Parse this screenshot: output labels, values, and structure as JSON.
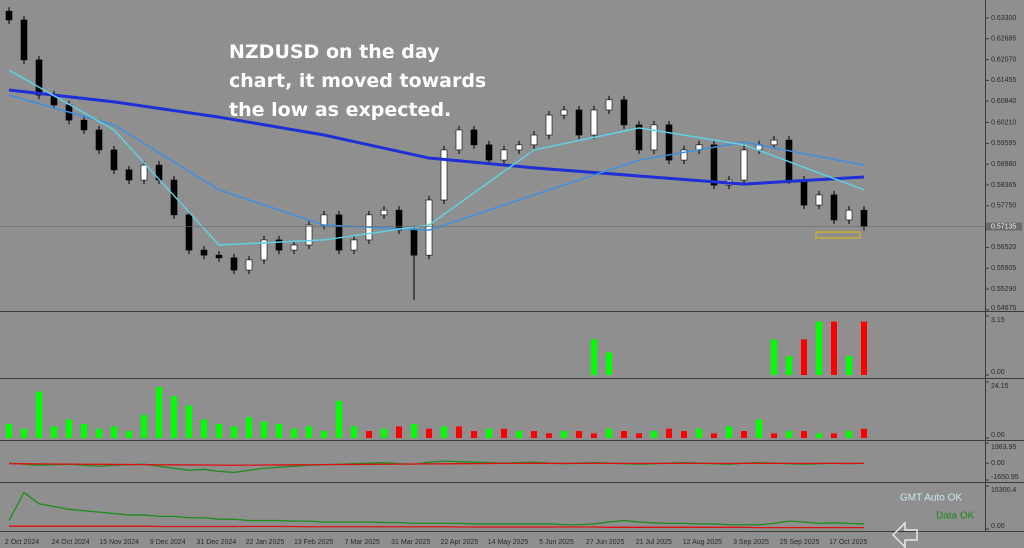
{
  "chart_data": [
    {
      "type": "candlestick",
      "annotation": [
        "NZDUSD on the day",
        "chart, it moved towards",
        "the low as expected."
      ],
      "up_color": "#ffffff",
      "down_color": "#000000",
      "open": [
        0.635,
        0.6324,
        0.6206,
        0.6102,
        0.6073,
        0.6028,
        0.5999,
        0.594,
        0.5881,
        0.5851,
        0.5895,
        0.5851,
        0.5748,
        0.5644,
        0.5629,
        0.5621,
        0.5585,
        0.5615,
        0.5674,
        0.5644,
        0.5659,
        0.5718,
        0.5748,
        0.5644,
        0.5674,
        0.5748,
        0.5762,
        0.5703,
        0.5629,
        0.5792,
        0.594,
        0.5999,
        0.5955,
        0.591,
        0.594,
        0.5955,
        0.5984,
        0.6043,
        0.6058,
        0.5984,
        0.6058,
        0.6088,
        0.6014,
        0.594,
        0.6014,
        0.591,
        0.594,
        0.5955,
        0.5836,
        0.5851,
        0.594,
        0.5955,
        0.5969,
        0.5851,
        0.5777,
        0.5807,
        0.5733,
        0.5762
      ],
      "high": [
        0.6362,
        0.6336,
        0.6218,
        0.6114,
        0.6085,
        0.604,
        0.6011,
        0.5952,
        0.5893,
        0.5907,
        0.5907,
        0.5863,
        0.576,
        0.5656,
        0.5641,
        0.5633,
        0.5627,
        0.5686,
        0.5686,
        0.5671,
        0.573,
        0.576,
        0.576,
        0.5686,
        0.576,
        0.5774,
        0.5774,
        0.5715,
        0.5804,
        0.5952,
        0.6011,
        0.6011,
        0.5967,
        0.5952,
        0.5967,
        0.5996,
        0.6055,
        0.607,
        0.607,
        0.607,
        0.61,
        0.61,
        0.6026,
        0.6026,
        0.6026,
        0.5952,
        0.5967,
        0.5967,
        0.5863,
        0.5952,
        0.5967,
        0.5981,
        0.5981,
        0.5863,
        0.5819,
        0.5819,
        0.5774,
        0.5774
      ],
      "low": [
        0.6312,
        0.6194,
        0.609,
        0.6061,
        0.6016,
        0.5987,
        0.5928,
        0.5869,
        0.5839,
        0.5839,
        0.5839,
        0.5736,
        0.5632,
        0.5617,
        0.5609,
        0.5573,
        0.5573,
        0.5603,
        0.5632,
        0.5632,
        0.5647,
        0.5706,
        0.5632,
        0.5632,
        0.5662,
        0.5736,
        0.5691,
        0.5497,
        0.5617,
        0.578,
        0.5928,
        0.5943,
        0.5898,
        0.5898,
        0.5928,
        0.5943,
        0.5972,
        0.6031,
        0.5972,
        0.5972,
        0.6046,
        0.6002,
        0.5928,
        0.5928,
        0.5898,
        0.5898,
        0.5928,
        0.5824,
        0.5824,
        0.5839,
        0.5928,
        0.5943,
        0.5839,
        0.5765,
        0.5765,
        0.5721,
        0.5721,
        0.5702
      ],
      "close": [
        0.6324,
        0.6206,
        0.6102,
        0.6073,
        0.6028,
        0.5999,
        0.594,
        0.5881,
        0.5851,
        0.5895,
        0.5851,
        0.5748,
        0.5644,
        0.5629,
        0.5621,
        0.5585,
        0.5615,
        0.5674,
        0.5644,
        0.5659,
        0.5718,
        0.5748,
        0.5644,
        0.5674,
        0.5748,
        0.5762,
        0.5703,
        0.5629,
        0.5792,
        0.594,
        0.5999,
        0.5955,
        0.591,
        0.594,
        0.5955,
        0.5984,
        0.6043,
        0.6058,
        0.5984,
        0.6058,
        0.6088,
        0.6014,
        0.594,
        0.6014,
        0.591,
        0.594,
        0.5955,
        0.5836,
        0.5851,
        0.594,
        0.5955,
        0.5969,
        0.5851,
        0.5777,
        0.5807,
        0.5733,
        0.5762,
        0.57135
      ],
      "overlays": [
        {
          "color": "#1f2fd6",
          "x": [
            0,
            7,
            14,
            21,
            28,
            35,
            42,
            49,
            57
          ],
          "values": [
            0.6117,
            0.6082,
            0.6037,
            0.5984,
            0.5916,
            0.5887,
            0.5863,
            0.5839,
            0.586
          ]
        },
        {
          "color": "#3d8fe0",
          "x": [
            0,
            7,
            14,
            21,
            28,
            35,
            42,
            49,
            57
          ],
          "values": [
            0.6102,
            0.6014,
            0.5822,
            0.5718,
            0.5703,
            0.5807,
            0.591,
            0.5963,
            0.5895
          ]
        },
        {
          "color": "#5fd0e6",
          "x": [
            0,
            7,
            14,
            21,
            28,
            35,
            42,
            49,
            57
          ],
          "values": [
            0.6176,
            0.5999,
            0.5659,
            0.5674,
            0.5718,
            0.594,
            0.6005,
            0.5955,
            0.5822
          ]
        }
      ],
      "last_price": 0.57135,
      "ylim": [
        0.5464,
        0.6383
      ],
      "yticks": [
        {
          "value": 0.633,
          "label": "0.63300"
        },
        {
          "value": 0.62685,
          "label": "0.62685"
        },
        {
          "value": 0.6207,
          "label": "0.62070"
        },
        {
          "value": 0.61455,
          "label": "0.61455"
        },
        {
          "value": 0.6084,
          "label": "0.60840"
        },
        {
          "value": 0.6021,
          "label": "0.60210"
        },
        {
          "value": 0.59595,
          "label": "0.59595"
        },
        {
          "value": 0.5898,
          "label": "0.58980"
        },
        {
          "value": 0.58365,
          "label": "0.58365"
        },
        {
          "value": 0.5775,
          "label": "0.57750"
        },
        {
          "value": 0.5652,
          "label": "0.56520"
        },
        {
          "value": 0.55905,
          "label": "0.55905"
        },
        {
          "value": 0.5529,
          "label": "0.55290"
        },
        {
          "value": 0.54675,
          "label": "0.54675"
        }
      ],
      "x_labels": [
        "2 Oct 2024",
        "24 Oct 2024",
        "15 Nov 2024",
        "9 Dec 2024",
        "31 Dec 2024",
        "22 Jan 2025",
        "13 Feb 2025",
        "7 Mar 2025",
        "31 Mar 2025",
        "22 Apr 2025",
        "14 May 2025",
        "5 Jun 2025",
        "27 Jun 2025",
        "21 Jul 2025",
        "12 Aug 2025",
        "3 Sep 2025",
        "25 Sep 2025",
        "17 Oct 2025"
      ]
    },
    {
      "type": "bar",
      "ylim": [
        0,
        3.15
      ],
      "yticks": [
        3.15,
        {
          "value": 0,
          "label": "0.00"
        }
      ],
      "series": [
        {
          "color": "#00ff00",
          "values": [
            null,
            null,
            null,
            null,
            null,
            null,
            null,
            null,
            null,
            null,
            null,
            null,
            null,
            null,
            null,
            null,
            null,
            null,
            null,
            null,
            null,
            null,
            null,
            null,
            null,
            null,
            null,
            null,
            null,
            null,
            null,
            null,
            null,
            null,
            null,
            null,
            null,
            null,
            null,
            1.9,
            1.2,
            null,
            null,
            null,
            null,
            null,
            null,
            null,
            null,
            null,
            null,
            1.9,
            1.0,
            null,
            2.85,
            null,
            1.0,
            null
          ]
        },
        {
          "color": "#ff0000",
          "values": [
            null,
            null,
            null,
            null,
            null,
            null,
            null,
            null,
            null,
            null,
            null,
            null,
            null,
            null,
            null,
            null,
            null,
            null,
            null,
            null,
            null,
            null,
            null,
            null,
            null,
            null,
            null,
            null,
            null,
            null,
            null,
            null,
            null,
            null,
            null,
            null,
            null,
            null,
            null,
            null,
            null,
            null,
            null,
            null,
            null,
            null,
            null,
            null,
            null,
            null,
            null,
            null,
            null,
            1.9,
            null,
            2.85,
            null,
            2.85
          ]
        }
      ]
    },
    {
      "type": "bar",
      "ylim": [
        0,
        24.15
      ],
      "yticks": [
        24.15,
        {
          "value": 0,
          "label": "0.00"
        }
      ],
      "series": [
        {
          "color": "#00ff00",
          "values": [
            6,
            4,
            20,
            5,
            8,
            6,
            4,
            5,
            3,
            10,
            22,
            18,
            14,
            8,
            6,
            5,
            9,
            7,
            6,
            4,
            5,
            3,
            16,
            5,
            null,
            4,
            null,
            6,
            null,
            5,
            null,
            null,
            4,
            null,
            3,
            null,
            null,
            3,
            null,
            null,
            4,
            null,
            null,
            3,
            null,
            null,
            4,
            null,
            5,
            null,
            8,
            null,
            3,
            null,
            2,
            null,
            3,
            null
          ]
        },
        {
          "color": "#ff0000",
          "values": [
            null,
            null,
            null,
            null,
            null,
            null,
            null,
            null,
            null,
            null,
            null,
            null,
            null,
            null,
            null,
            null,
            null,
            null,
            null,
            null,
            null,
            null,
            null,
            null,
            3,
            null,
            5,
            null,
            4,
            null,
            5,
            3,
            null,
            4,
            null,
            3,
            2,
            null,
            3,
            2,
            null,
            3,
            2,
            null,
            4,
            3,
            null,
            2,
            null,
            3,
            null,
            2,
            null,
            3,
            null,
            2,
            null,
            4
          ]
        }
      ]
    },
    {
      "type": "line",
      "ylim": [
        -1650.95,
        1983.95
      ],
      "yticks": [
        1983.95,
        {
          "value": 0,
          "label": "0.00"
        },
        -1650.95
      ],
      "series": [
        {
          "color": "#1e8c1e",
          "values": [
            0,
            -100,
            -200,
            -150,
            -100,
            -200,
            -300,
            -200,
            -150,
            -100,
            -300,
            -500,
            -700,
            -600,
            -800,
            -900,
            -700,
            -500,
            -400,
            -300,
            -200,
            -150,
            -100,
            -50,
            0,
            50,
            -50,
            -100,
            100,
            200,
            150,
            100,
            50,
            0,
            50,
            100,
            0,
            -50,
            0,
            50,
            0,
            -50,
            -100,
            -50,
            0,
            50,
            0,
            -50,
            -100,
            0,
            50,
            0,
            -50,
            -100,
            -50,
            0,
            -50,
            0
          ]
        },
        {
          "color": "#e01010",
          "values": [
            -50,
            -60,
            -70,
            -80,
            -90,
            -100,
            -110,
            -120,
            -130,
            -140,
            -150,
            -160,
            -170,
            -180,
            -190,
            -200,
            -190,
            -180,
            -170,
            -160,
            -150,
            -140,
            -130,
            -120,
            -110,
            -100,
            -90,
            -80,
            -70,
            -60,
            -50,
            -40,
            -30,
            -20,
            -20,
            -20,
            -20,
            -20,
            -20,
            -20,
            -20,
            -20,
            -20,
            -20,
            -20,
            -20,
            -20,
            -20,
            -20,
            -20,
            -20,
            -20,
            -20,
            -20,
            -20,
            -20,
            -20,
            -20
          ]
        }
      ]
    },
    {
      "type": "line",
      "ylim": [
        0,
        15300.4
      ],
      "yticks": [
        15300.4,
        {
          "value": 0,
          "label": "0.00"
        }
      ],
      "status": [
        "GMT Auto OK",
        "Data OK"
      ],
      "series": [
        {
          "color": "#1e8c1e",
          "values": [
            3000,
            13000,
            9000,
            8000,
            7000,
            6500,
            6000,
            5500,
            5000,
            5000,
            4500,
            4500,
            4000,
            4000,
            3500,
            3500,
            3000,
            3000,
            3000,
            2800,
            2800,
            2500,
            2500,
            2500,
            2500,
            2300,
            2300,
            2000,
            2000,
            2000,
            2000,
            1800,
            1800,
            1800,
            1800,
            1800,
            1800,
            1500,
            1500,
            1800,
            2500,
            3000,
            2500,
            2200,
            2000,
            2000,
            1800,
            1800,
            1500,
            1500,
            1500,
            2000,
            2800,
            2500,
            2000,
            2200,
            2000,
            1800
          ]
        },
        {
          "color": "#e01010",
          "values": [
            1000,
            1000,
            1000,
            1000,
            1000,
            1000,
            1000,
            1000,
            1000,
            1000,
            900,
            900,
            900,
            900,
            900,
            900,
            900,
            900,
            900,
            900,
            800,
            800,
            800,
            800,
            800,
            800,
            800,
            800,
            800,
            800,
            700,
            700,
            700,
            700,
            700,
            700,
            700,
            700,
            700,
            700,
            600,
            600,
            600,
            600,
            600,
            600,
            600,
            600,
            600,
            600,
            500,
            500,
            500,
            500,
            500,
            500,
            500,
            500
          ]
        }
      ]
    }
  ]
}
